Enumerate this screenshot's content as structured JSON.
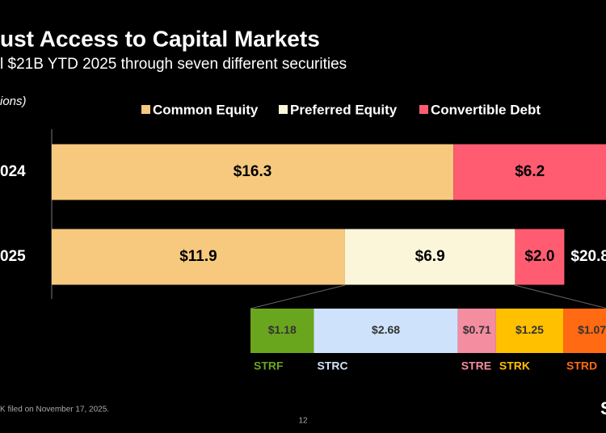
{
  "chart_data": [
    {
      "type": "bar",
      "orientation": "horizontal",
      "stacked": true,
      "title": "ust Access to Capital Markets",
      "subtitle": "l $21B YTD 2025 through seven different securities",
      "unit_label": "ions)",
      "categories": [
        "024",
        "025"
      ],
      "series": [
        {
          "name": "Common Equity",
          "color": "#f7c97e",
          "values": [
            16.3,
            11.9
          ],
          "value_labels": [
            "$16.3",
            "$11.9"
          ]
        },
        {
          "name": "Preferred Equity",
          "color": "#fbf6da",
          "values": [
            null,
            6.9
          ],
          "value_labels": [
            null,
            "$6.9"
          ]
        },
        {
          "name": "Convertible Debt",
          "color": "#ff5c72",
          "values": [
            6.2,
            2.0
          ],
          "value_labels": [
            "$6.2",
            "$2.0"
          ]
        }
      ],
      "totals": [
        null,
        20.8
      ],
      "total_labels": [
        null,
        "$20.8"
      ],
      "legend": "top"
    },
    {
      "type": "breakdown",
      "categories": [
        "STRF",
        "STRC",
        "STRE",
        "STRK",
        "STRD"
      ],
      "colors": [
        "#6aa51e",
        "#cfe2fb",
        "#f48da0",
        "#ffc000",
        "#ff6a13"
      ],
      "values": [
        1.18,
        2.68,
        0.71,
        1.25,
        1.07
      ],
      "value_labels": [
        "$1.18",
        "$2.68",
        "$0.71",
        "$1.25",
        "$1.07"
      ]
    }
  ],
  "footnote": "K filed on November 17, 2025.",
  "page_number": "12",
  "logo_text": "S"
}
